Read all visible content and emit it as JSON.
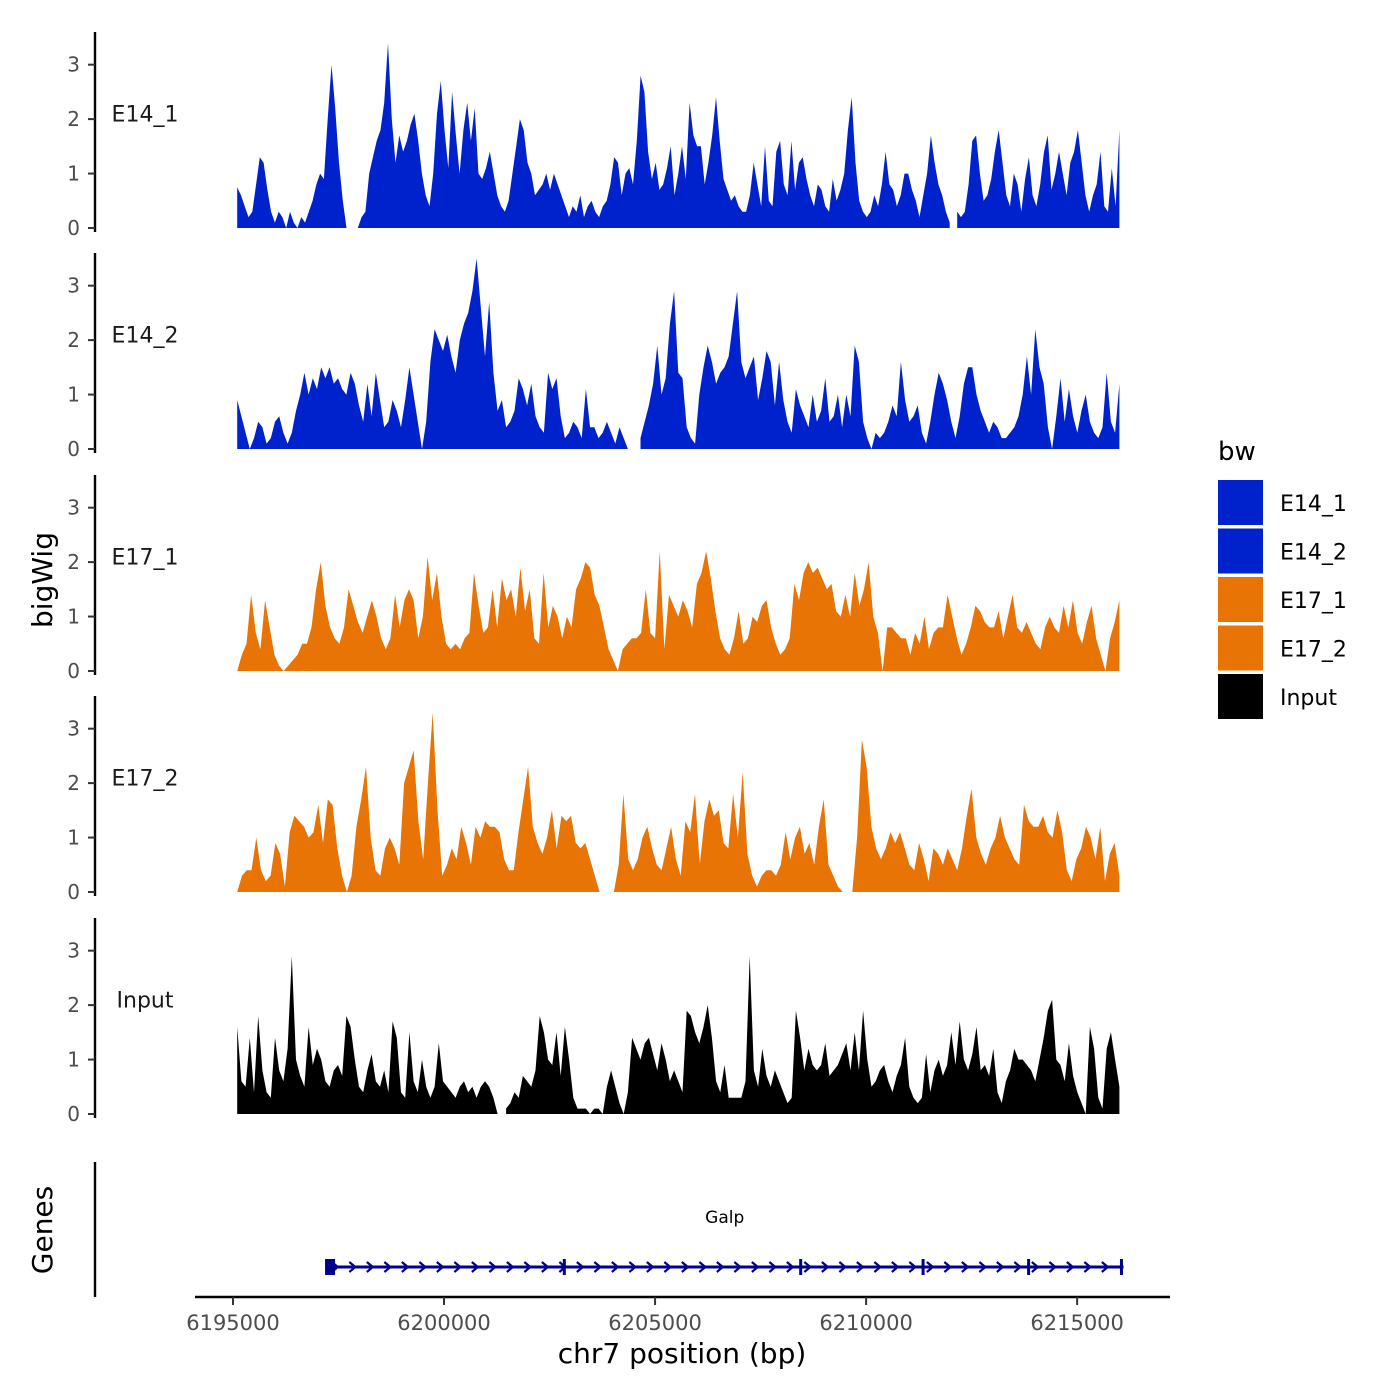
{
  "chart_data": {
    "type": "area",
    "ylabel": "bigWig",
    "genes_label": "Genes",
    "xlabel": "chr7 position (bp)",
    "xlim": [
      6194100,
      6217200
    ],
    "ylim": [
      0,
      3.6
    ],
    "yticks": [
      0,
      1,
      2,
      3
    ],
    "xticks": [
      6195000,
      6200000,
      6205000,
      6210000,
      6215000
    ],
    "xtick_labels": [
      "6195000",
      "6200000",
      "6205000",
      "6210000",
      "6215000"
    ],
    "x_start": 6195100,
    "x_end": 6216000,
    "legend": {
      "title": "bw",
      "position": "right",
      "entries": [
        {
          "label": "E14_1",
          "color": "#0022CC"
        },
        {
          "label": "E14_2",
          "color": "#0022CC"
        },
        {
          "label": "E17_1",
          "color": "#E87405"
        },
        {
          "label": "E17_2",
          "color": "#E87405"
        },
        {
          "label": "Input",
          "color": "#000000"
        }
      ]
    },
    "tracks": [
      {
        "name": "E14_1",
        "color": "#0022CC",
        "values": [
          0.75,
          0.6,
          0.4,
          0.2,
          0.3,
          0.8,
          1.3,
          1.2,
          0.7,
          0.3,
          0.1,
          0.3,
          0.2,
          0.0,
          0.3,
          0.1,
          0.0,
          0.2,
          0.1,
          0.3,
          0.5,
          0.8,
          1.0,
          0.9,
          2.0,
          3.0,
          2.2,
          1.2,
          0.5,
          0.0,
          null,
          null,
          0.0,
          0.2,
          0.3,
          1.0,
          1.3,
          1.6,
          1.8,
          2.3,
          3.4,
          2.0,
          1.2,
          1.7,
          1.4,
          1.6,
          1.9,
          2.1,
          1.6,
          1.0,
          0.6,
          0.4,
          1.0,
          2.1,
          2.7,
          1.8,
          1.1,
          2.5,
          1.7,
          1.0,
          1.8,
          2.3,
          1.6,
          2.2,
          1.0,
          0.9,
          1.1,
          1.4,
          1.0,
          0.6,
          0.4,
          0.3,
          0.5,
          1.0,
          1.5,
          2.0,
          1.8,
          1.2,
          1.0,
          0.6,
          0.7,
          0.8,
          1.0,
          0.7,
          1.0,
          0.8,
          0.6,
          0.4,
          0.2,
          0.4,
          0.3,
          0.6,
          0.2,
          0.4,
          0.5,
          0.3,
          0.2,
          0.4,
          0.5,
          0.8,
          1.3,
          1.2,
          0.6,
          1.0,
          1.1,
          0.8,
          1.6,
          2.8,
          2.5,
          1.4,
          0.9,
          1.2,
          0.7,
          0.8,
          1.1,
          1.5,
          0.6,
          1.0,
          1.5,
          0.9,
          2.3,
          1.7,
          1.5,
          1.5,
          0.8,
          1.2,
          1.7,
          2.4,
          1.6,
          0.9,
          0.7,
          0.5,
          0.6,
          0.4,
          0.3,
          0.3,
          0.6,
          1.2,
          0.8,
          0.4,
          1.5,
          0.5,
          0.4,
          1.4,
          1.6,
          0.8,
          0.6,
          1.6,
          0.7,
          1.2,
          1.3,
          0.9,
          0.6,
          0.4,
          0.8,
          0.7,
          0.4,
          0.3,
          0.9,
          0.5,
          0.7,
          1.0,
          1.8,
          2.4,
          1.2,
          0.5,
          0.3,
          0.2,
          0.3,
          0.6,
          0.4,
          0.8,
          1.4,
          0.8,
          0.7,
          0.4,
          0.6,
          1.0,
          1.0,
          0.7,
          0.5,
          0.2,
          0.6,
          1.0,
          1.7,
          1.2,
          0.8,
          0.6,
          0.3,
          0.1,
          null,
          0.3,
          0.2,
          0.3,
          0.8,
          1.6,
          1.7,
          1.0,
          0.5,
          0.6,
          0.9,
          1.4,
          1.8,
          1.2,
          0.6,
          0.4,
          1.0,
          0.8,
          0.3,
          0.9,
          1.3,
          0.6,
          0.4,
          0.8,
          1.4,
          1.7,
          0.7,
          1.0,
          1.4,
          1.0,
          0.6,
          1.2,
          1.4,
          1.8,
          1.2,
          0.6,
          0.3,
          0.6,
          0.8,
          1.4,
          0.4,
          0.3,
          1.1,
          0.4,
          1.8
        ]
      },
      {
        "name": "E14_2",
        "color": "#0022CC",
        "values": [
          0.9,
          0.6,
          0.3,
          0.0,
          0.2,
          0.5,
          0.4,
          0.1,
          0.2,
          0.5,
          0.6,
          0.3,
          0.1,
          0.3,
          0.7,
          1.0,
          1.4,
          1.0,
          1.3,
          1.1,
          1.5,
          1.3,
          1.5,
          1.2,
          1.3,
          1.1,
          1.0,
          1.4,
          1.2,
          0.8,
          0.5,
          1.2,
          0.6,
          1.4,
          0.9,
          0.4,
          0.5,
          0.9,
          0.7,
          0.4,
          0.9,
          1.5,
          1.0,
          0.5,
          0.0,
          0.5,
          1.6,
          2.2,
          2.0,
          1.8,
          2.1,
          1.7,
          1.4,
          2.0,
          2.3,
          2.5,
          2.9,
          3.5,
          2.6,
          1.7,
          2.7,
          1.4,
          0.7,
          0.9,
          0.4,
          0.5,
          0.7,
          1.3,
          1.1,
          0.8,
          1.2,
          0.6,
          0.4,
          0.3,
          1.4,
          1.1,
          1.3,
          0.6,
          0.2,
          0.3,
          0.5,
          0.4,
          0.2,
          1.1,
          0.4,
          0.4,
          0.2,
          0.3,
          0.5,
          0.3,
          0.1,
          0.4,
          0.2,
          0.0,
          null,
          null,
          0.2,
          0.5,
          0.8,
          1.2,
          1.9,
          1.0,
          1.3,
          2.3,
          2.9,
          1.4,
          1.3,
          0.4,
          0.2,
          0.1,
          1.0,
          1.5,
          1.9,
          1.6,
          1.2,
          1.4,
          1.5,
          1.7,
          2.3,
          2.9,
          1.6,
          1.3,
          1.5,
          1.7,
          0.9,
          1.3,
          1.8,
          1.6,
          0.8,
          1.6,
          0.9,
          0.5,
          0.3,
          1.1,
          0.8,
          0.6,
          0.4,
          1.0,
          0.5,
          0.7,
          1.3,
          0.5,
          0.6,
          1.0,
          0.4,
          1.0,
          0.6,
          1.9,
          1.6,
          0.5,
          0.2,
          0.0,
          0.3,
          0.2,
          0.3,
          0.5,
          0.8,
          0.6,
          1.6,
          0.9,
          0.5,
          0.6,
          0.8,
          0.3,
          0.1,
          0.5,
          1.0,
          1.4,
          1.2,
          0.9,
          0.5,
          0.2,
          0.6,
          1.2,
          1.5,
          1.5,
          1.0,
          0.7,
          0.5,
          0.3,
          0.5,
          0.4,
          0.2,
          0.2,
          0.3,
          0.4,
          0.6,
          1.0,
          1.7,
          1.0,
          2.2,
          1.5,
          1.2,
          0.4,
          0.0,
          0.6,
          1.3,
          0.5,
          1.1,
          0.6,
          0.3,
          0.7,
          1.0,
          0.5,
          0.3,
          0.2,
          0.4,
          1.4,
          0.5,
          0.3,
          1.2
        ]
      },
      {
        "name": "E17_1",
        "color": "#E87405",
        "values": [
          0.0,
          0.3,
          0.5,
          1.4,
          0.7,
          0.4,
          1.3,
          0.8,
          0.3,
          0.1,
          0.0,
          0.1,
          0.2,
          0.3,
          0.5,
          0.5,
          0.8,
          1.5,
          2.0,
          1.2,
          0.8,
          0.6,
          0.5,
          0.8,
          1.5,
          1.2,
          0.9,
          0.7,
          1.0,
          1.3,
          1.0,
          0.6,
          0.4,
          0.6,
          1.4,
          0.8,
          1.3,
          1.5,
          1.3,
          0.6,
          1.0,
          2.1,
          1.3,
          1.8,
          1.0,
          0.5,
          0.4,
          0.5,
          0.4,
          0.6,
          0.7,
          1.8,
          1.2,
          0.7,
          0.8,
          1.5,
          0.8,
          1.7,
          1.3,
          1.5,
          1.0,
          1.9,
          1.1,
          1.5,
          0.6,
          0.5,
          1.8,
          0.8,
          1.2,
          1.0,
          0.6,
          1.0,
          0.8,
          1.5,
          1.7,
          2.0,
          1.9,
          1.4,
          1.2,
          0.8,
          0.4,
          0.2,
          0.0,
          0.4,
          0.5,
          0.6,
          0.6,
          0.7,
          1.5,
          0.7,
          0.6,
          2.2,
          0.4,
          1.4,
          1.2,
          1.0,
          1.3,
          1.1,
          0.8,
          1.6,
          1.8,
          2.2,
          1.7,
          1.1,
          0.6,
          0.4,
          0.3,
          0.6,
          1.1,
          0.5,
          0.6,
          1.0,
          0.9,
          1.2,
          1.3,
          0.8,
          0.5,
          0.3,
          0.4,
          0.6,
          1.6,
          1.3,
          1.8,
          2.0,
          1.8,
          1.9,
          1.7,
          1.5,
          1.6,
          1.1,
          1.0,
          1.4,
          1.0,
          1.8,
          1.2,
          1.5,
          2.0,
          1.0,
          0.7,
          0.0,
          0.8,
          0.8,
          0.7,
          0.6,
          0.6,
          0.3,
          0.7,
          0.5,
          1.0,
          0.4,
          0.7,
          0.8,
          0.8,
          1.4,
          1.0,
          0.6,
          0.3,
          0.5,
          0.8,
          1.2,
          1.1,
          0.9,
          0.8,
          0.8,
          1.1,
          0.6,
          1.0,
          1.4,
          0.8,
          0.7,
          0.9,
          0.7,
          0.5,
          0.4,
          0.8,
          1.0,
          0.8,
          0.7,
          1.2,
          0.8,
          1.3,
          0.7,
          0.5,
          0.9,
          1.2,
          0.6,
          0.3,
          0.0,
          0.6,
          0.9,
          1.3
        ]
      },
      {
        "name": "E17_2",
        "color": "#E87405",
        "values": [
          0.0,
          0.3,
          0.4,
          0.4,
          1.0,
          0.4,
          0.2,
          0.3,
          0.9,
          0.7,
          0.1,
          1.1,
          1.4,
          1.3,
          1.2,
          1.0,
          1.1,
          1.6,
          0.9,
          1.7,
          1.6,
          0.8,
          0.3,
          0.0,
          0.3,
          1.2,
          1.7,
          2.3,
          1.0,
          0.4,
          0.3,
          0.8,
          1.0,
          0.8,
          0.5,
          2.0,
          2.3,
          2.6,
          1.3,
          0.6,
          2.0,
          3.3,
          1.5,
          0.3,
          0.5,
          0.8,
          0.6,
          1.2,
          0.9,
          0.5,
          1.2,
          1.0,
          1.3,
          1.2,
          1.2,
          1.1,
          0.6,
          0.4,
          0.4,
          1.1,
          1.7,
          2.3,
          1.2,
          0.9,
          0.7,
          1.0,
          1.5,
          0.8,
          1.4,
          1.3,
          1.4,
          0.9,
          0.8,
          0.9,
          0.6,
          0.3,
          0.0,
          null,
          null,
          0.0,
          0.5,
          1.8,
          0.6,
          0.4,
          0.6,
          1.0,
          1.2,
          0.8,
          0.5,
          0.4,
          0.8,
          1.2,
          0.6,
          0.3,
          1.3,
          1.1,
          1.8,
          0.5,
          1.3,
          1.7,
          1.4,
          1.5,
          0.9,
          0.8,
          1.8,
          1.0,
          2.2,
          0.7,
          0.3,
          0.1,
          0.3,
          0.4,
          0.4,
          0.3,
          0.5,
          1.1,
          0.6,
          1.0,
          1.2,
          0.7,
          0.9,
          0.5,
          1.2,
          1.7,
          0.5,
          0.3,
          0.1,
          0.0,
          null,
          0.0,
          1.0,
          2.8,
          2.3,
          1.2,
          0.8,
          0.6,
          0.8,
          1.1,
          0.9,
          1.1,
          0.8,
          0.5,
          0.4,
          0.9,
          0.6,
          0.2,
          0.8,
          0.7,
          0.5,
          0.8,
          0.6,
          0.4,
          0.8,
          1.4,
          1.9,
          1.0,
          0.7,
          0.5,
          0.8,
          1.0,
          1.4,
          1.0,
          0.8,
          0.6,
          0.5,
          1.6,
          1.3,
          1.2,
          1.2,
          1.4,
          1.1,
          1.0,
          1.5,
          1.1,
          0.4,
          0.2,
          0.6,
          0.8,
          1.2,
          1.0,
          0.6,
          1.2,
          0.2,
          0.7,
          0.9,
          0.3
        ]
      },
      {
        "name": "Input",
        "color": "#000000",
        "values": [
          1.6,
          0.6,
          0.5,
          1.4,
          0.4,
          1.8,
          0.8,
          0.4,
          0.3,
          1.4,
          0.8,
          0.6,
          1.2,
          2.9,
          1.0,
          0.7,
          0.5,
          1.6,
          0.9,
          1.2,
          1.0,
          0.6,
          0.5,
          0.8,
          0.9,
          0.7,
          1.8,
          1.6,
          1.0,
          0.5,
          0.4,
          0.8,
          1.1,
          0.6,
          0.5,
          0.8,
          0.4,
          1.7,
          1.4,
          0.4,
          0.3,
          1.5,
          0.6,
          0.4,
          1.0,
          0.5,
          0.3,
          0.5,
          1.3,
          0.6,
          0.5,
          0.4,
          0.3,
          0.5,
          0.6,
          0.4,
          0.5,
          0.3,
          0.5,
          0.6,
          0.5,
          0.3,
          0.0,
          null,
          0.1,
          0.2,
          0.4,
          0.3,
          0.7,
          0.6,
          0.5,
          0.8,
          1.8,
          1.5,
          1.0,
          0.9,
          1.5,
          0.7,
          1.6,
          1.0,
          0.3,
          0.1,
          0.1,
          0.1,
          0.0,
          0.1,
          0.1,
          0.0,
          0.5,
          0.8,
          0.5,
          0.2,
          0.0,
          0.4,
          1.4,
          1.2,
          1.0,
          1.3,
          1.4,
          1.1,
          0.8,
          1.3,
          1.0,
          0.6,
          0.8,
          0.6,
          0.4,
          1.9,
          1.8,
          1.5,
          1.3,
          1.6,
          2.0,
          1.4,
          0.6,
          0.4,
          0.9,
          0.3,
          0.3,
          0.3,
          0.3,
          0.6,
          2.9,
          0.8,
          0.5,
          1.2,
          0.7,
          0.5,
          0.8,
          0.6,
          0.4,
          0.2,
          0.3,
          1.9,
          1.4,
          0.8,
          1.2,
          0.9,
          0.8,
          0.9,
          1.3,
          0.7,
          0.8,
          0.9,
          1.1,
          1.3,
          0.8,
          1.5,
          0.8,
          1.9,
          1.0,
          0.5,
          0.6,
          0.8,
          0.9,
          0.6,
          0.4,
          0.7,
          0.9,
          1.4,
          0.5,
          0.3,
          0.2,
          0.3,
          1.1,
          0.4,
          0.8,
          1.0,
          0.7,
          0.9,
          1.5,
          0.9,
          1.7,
          1.0,
          0.8,
          1.1,
          1.6,
          0.8,
          0.9,
          0.7,
          1.2,
          0.4,
          0.2,
          0.6,
          0.8,
          1.2,
          1.0,
          1.0,
          0.9,
          0.8,
          0.6,
          1.0,
          1.4,
          1.9,
          2.1,
          1.0,
          0.9,
          0.6,
          1.3,
          0.7,
          0.4,
          0.2,
          0.0,
          1.6,
          1.2,
          0.3,
          0.1,
          1.2,
          1.5,
          1.0,
          0.5
        ]
      }
    ],
    "genes": [
      {
        "name": "Galp",
        "start": 6197200,
        "end": 6216100,
        "strand": "+",
        "exons": [
          6197300,
          6202850,
          6208450,
          6211350,
          6213850,
          6216050
        ],
        "color": "#00008B"
      }
    ]
  }
}
